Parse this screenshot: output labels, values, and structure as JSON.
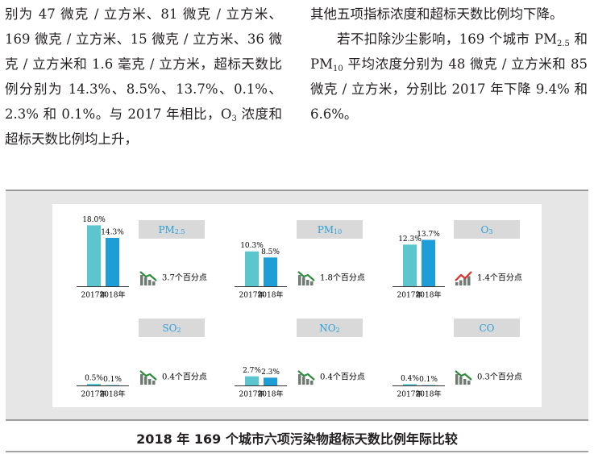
{
  "columns": [
    {
      "paragraphs": [
        {
          "segments": [
            {
              "t": "别为 47 微克 / 立方米、81 微克 / 立方米、169 微克 / 立方米、15 微克 / 立方米、36 微克 / 立方米和 1.6 毫克 / 立方米，超标天数比例分别为 14.3%、8.5%、13.7%、0.1%、2.3% 和 0.1%。与 2017 年相比，O"
            },
            {
              "sub": "3"
            },
            {
              "t": " 浓度和超标天数比例均上升，"
            }
          ]
        }
      ]
    },
    {
      "paragraphs": [
        {
          "segments": [
            {
              "t": "其他五项指标浓度和超标天数比例均下降。"
            }
          ]
        },
        {
          "segments": [
            {
              "t": "若不扣除沙尘影响，169 个城市 PM"
            },
            {
              "sub": "2.5"
            },
            {
              "t": " 和 PM"
            },
            {
              "sub": "10"
            },
            {
              "t": " 平均浓度分别为 48 微克 / 立方米和 85 微克 / 立方米，分别比 2017 年下降 9.4% 和 6.6%。"
            }
          ]
        }
      ]
    }
  ],
  "figure": {
    "caption": "2018 年 169 个城市六项污染物超标天数比例年际比较",
    "colors": [
      "#5cc6cf",
      "#1e9ed9"
    ],
    "panels": [
      {
        "name": "PM",
        "sub": "2.5",
        "categories": [
          "2017年",
          "2018年"
        ],
        "values": [
          18.0,
          14.3
        ],
        "value_labels": [
          "18.0%",
          "14.3%"
        ],
        "change": "3.7个百分点",
        "trend": "down"
      },
      {
        "name": "PM",
        "sub": "10",
        "categories": [
          "2017年",
          "2018年"
        ],
        "values": [
          10.3,
          8.5
        ],
        "value_labels": [
          "10.3%",
          "8.5%"
        ],
        "change": "1.8个百分点",
        "trend": "down"
      },
      {
        "name": "O",
        "sub": "3",
        "categories": [
          "2017年",
          "2018年"
        ],
        "values": [
          12.3,
          13.7
        ],
        "value_labels": [
          "12.3%",
          "13.7%"
        ],
        "change": "1.4个百分点",
        "trend": "up"
      },
      {
        "name": "SO",
        "sub": "2",
        "categories": [
          "2017年",
          "2018年"
        ],
        "values": [
          0.5,
          0.1
        ],
        "value_labels": [
          "0.5%",
          "0.1%"
        ],
        "change": "0.4个百分点",
        "trend": "down"
      },
      {
        "name": "NO",
        "sub": "2",
        "categories": [
          "2017年",
          "2018年"
        ],
        "values": [
          2.7,
          2.3
        ],
        "value_labels": [
          "2.7%",
          "2.3%"
        ],
        "change": "0.4个百分点",
        "trend": "down"
      },
      {
        "name": "CO",
        "categories": [
          "2017年",
          "2018年"
        ],
        "values": [
          0.4,
          0.1
        ],
        "value_labels": [
          "0.4%",
          "0.1%"
        ],
        "change": "0.3个百分点",
        "trend": "down"
      }
    ]
  }
}
